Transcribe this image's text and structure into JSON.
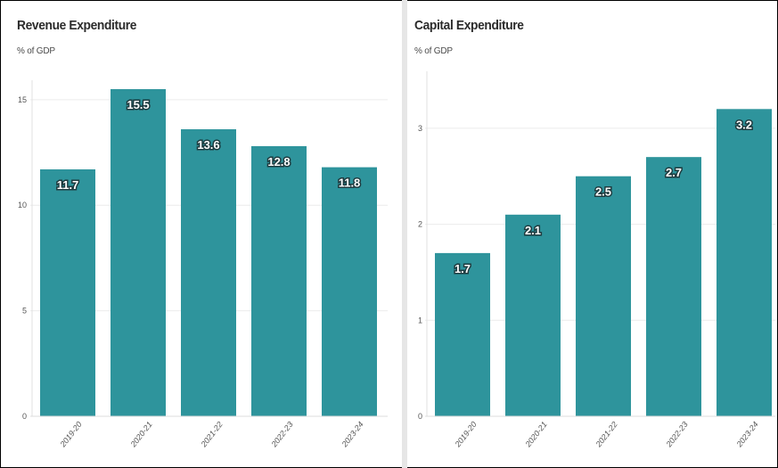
{
  "chart_data": [
    {
      "type": "bar",
      "title": "Revenue Expenditure",
      "subtitle": "% of GDP",
      "categories": [
        "2019-20",
        "2020-21",
        "2021-22",
        "2022-23",
        "2023-24"
      ],
      "values": [
        11.7,
        15.5,
        13.6,
        12.8,
        11.8
      ],
      "data_labels": [
        "11.7",
        "15.5",
        "13.6",
        "12.8",
        "11.8"
      ],
      "yticks": [
        "0",
        "5",
        "10",
        "15"
      ],
      "ylim": [
        0,
        15.5
      ],
      "grid": true,
      "bar_color": "#2e949c"
    },
    {
      "type": "bar",
      "title": "Capital Expenditure",
      "subtitle": "% of GDP",
      "categories": [
        "2019-20",
        "2020-21",
        "2021-22",
        "2022-23",
        "2023-24"
      ],
      "values": [
        1.7,
        2.1,
        2.5,
        2.7,
        3.2
      ],
      "data_labels": [
        "1.7",
        "2.1",
        "2.5",
        "2.7",
        "3.2"
      ],
      "yticks": [
        "0",
        "1",
        "2",
        "3"
      ],
      "ylim": [
        0,
        3.5
      ],
      "grid": true,
      "bar_color": "#2e949c"
    }
  ]
}
